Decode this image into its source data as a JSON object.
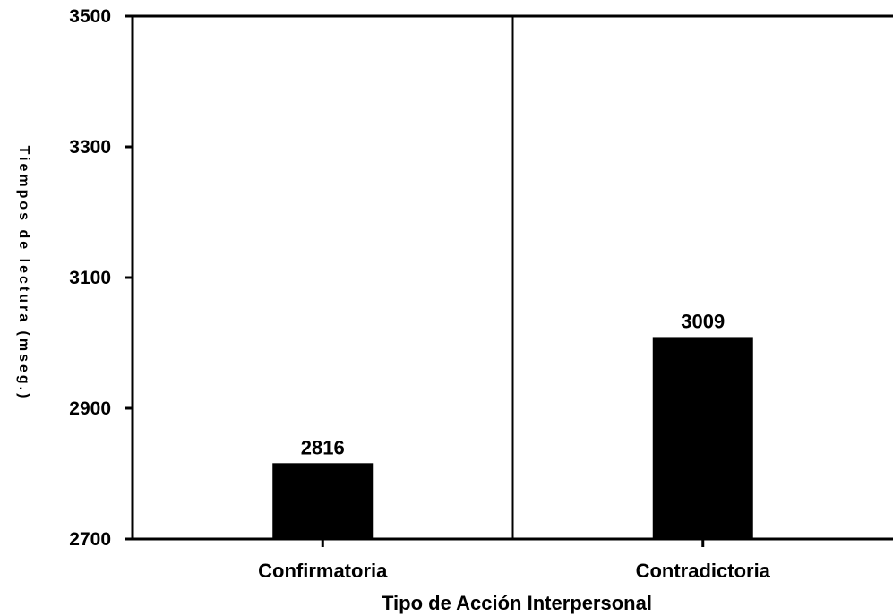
{
  "chart_data": {
    "type": "bar",
    "categories": [
      "Confirmatoria",
      "Contradictoria"
    ],
    "values": [
      2816,
      3009
    ],
    "data_labels": [
      "2816",
      "3009"
    ],
    "xlabel": "Tipo de Acción Interpersonal",
    "ylabel": "Tiempos de lectura (mseg.)",
    "ylim": [
      2700,
      3500
    ],
    "yticks": [
      2700,
      2900,
      3100,
      3300,
      3500
    ],
    "bar_color": "#000000",
    "grid": false,
    "legend": "none",
    "category_separator": true
  }
}
